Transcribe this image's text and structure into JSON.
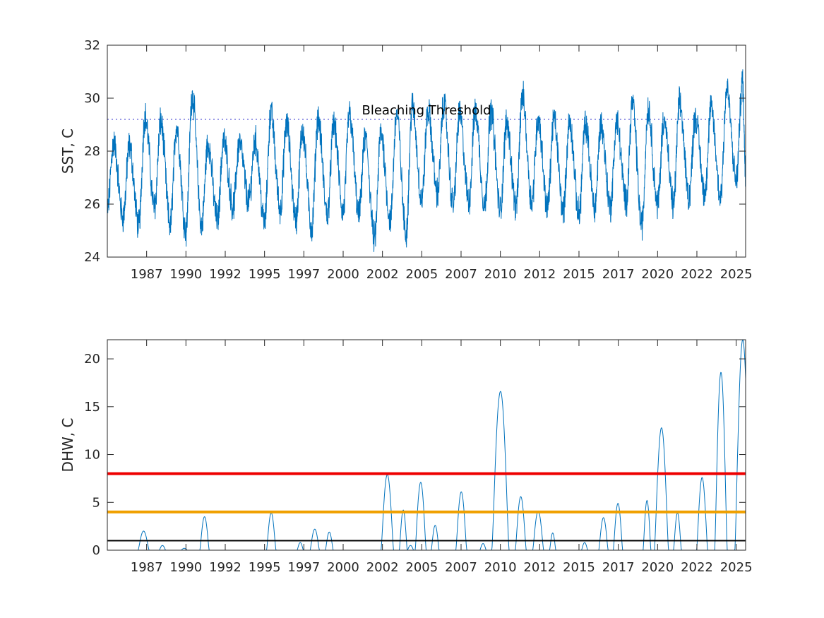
{
  "chart_data": [
    {
      "type": "line",
      "ylabel": "SST, C",
      "xlabel": "",
      "title": "",
      "xlim": [
        1984.5,
        2025.1
      ],
      "ylim": [
        24,
        32
      ],
      "y_ticks": [
        24,
        26,
        28,
        30,
        32
      ],
      "x_ticks": [
        1987,
        1990,
        1992,
        1995,
        1997,
        2000,
        2002,
        2005,
        2007,
        2010,
        2012,
        2015,
        2017,
        2020,
        2022,
        2025
      ],
      "x_tick_positions": [
        1987,
        1989.5,
        1992,
        1994.5,
        1997,
        1999.5,
        2002,
        2004.5,
        2007,
        2009.5,
        2012,
        2014.5,
        2017,
        2019.5,
        2022,
        2024.5
      ],
      "grid": false,
      "annotation": "Bleaching Threshold",
      "threshold": {
        "value": 29.2,
        "style": "dotted",
        "color": "#5a5ad6"
      },
      "series_color": "#0072BD",
      "series": [
        {
          "x": [
            1984.5,
            1984.9,
            1985.5,
            1985.9,
            1986.5,
            1986.9,
            1987.5,
            1987.9,
            1988.5,
            1988.9,
            1989.5,
            1989.9,
            1990.5,
            1990.9,
            1991.5,
            1991.9,
            1992.5,
            1992.9,
            1993.5,
            1993.9,
            1994.5,
            1994.9,
            1995.5,
            1995.9,
            1996.5,
            1996.9,
            1997.5,
            1997.9,
            1998.5,
            1998.9,
            1999.5,
            1999.9,
            2000.5,
            2000.9,
            2001.5,
            2001.9,
            2002.5,
            2002.9,
            2003.5,
            2003.9,
            2004.5,
            2004.9,
            2005.5,
            2005.9,
            2006.5,
            2006.9,
            2007.5,
            2007.9,
            2008.5,
            2008.9,
            2009.5,
            2009.9,
            2010.5,
            2010.9,
            2011.5,
            2011.9,
            2012.5,
            2012.9,
            2013.5,
            2013.9,
            2014.5,
            2014.9,
            2015.5,
            2015.9,
            2016.5,
            2016.9,
            2017.5,
            2017.9,
            2018.5,
            2018.9,
            2019.5,
            2019.9,
            2020.5,
            2020.9,
            2021.5,
            2021.9,
            2022.5,
            2022.9,
            2023.5,
            2023.9,
            2024.5,
            2024.9,
            2025.1
          ],
          "y": [
            25.8,
            28.3,
            25.5,
            28.2,
            25.2,
            29.3,
            25.9,
            29.1,
            25.2,
            28.9,
            25.0,
            30.1,
            25.2,
            28.3,
            25.4,
            28.4,
            25.9,
            28.3,
            26.1,
            28.4,
            25.3,
            29.4,
            25.8,
            29.0,
            25.4,
            28.8,
            25.1,
            29.2,
            25.6,
            29.0,
            25.7,
            29.4,
            25.6,
            28.5,
            24.7,
            28.7,
            25.4,
            29.4,
            24.9,
            29.7,
            26.2,
            29.5,
            26.4,
            29.8,
            26.0,
            29.4,
            26.1,
            29.5,
            26.0,
            29.5,
            25.8,
            29.1,
            25.9,
            30.1,
            26.1,
            29.2,
            25.9,
            29.2,
            25.8,
            29.1,
            25.6,
            29.0,
            25.9,
            29.0,
            25.9,
            29.1,
            26.1,
            29.8,
            25.2,
            29.6,
            26.0,
            29.2,
            26.0,
            29.8,
            26.3,
            29.3,
            26.4,
            29.6,
            26.3,
            30.3,
            26.9,
            30.6,
            27.2
          ]
        }
      ]
    },
    {
      "type": "line",
      "ylabel": "DHW, C",
      "xlabel": "",
      "title": "",
      "xlim": [
        1984.5,
        2025.1
      ],
      "ylim": [
        0,
        22
      ],
      "y_ticks": [
        0,
        5,
        10,
        15,
        20
      ],
      "x_ticks": [
        1987,
        1990,
        1992,
        1995,
        1997,
        2000,
        2002,
        2005,
        2007,
        2010,
        2012,
        2015,
        2017,
        2020,
        2022,
        2025
      ],
      "x_tick_positions": [
        1987,
        1989.5,
        1992,
        1994.5,
        1997,
        1999.5,
        2002,
        2004.5,
        2007,
        2009.5,
        2012,
        2014.5,
        2017,
        2019.5,
        2022,
        2024.5
      ],
      "grid": false,
      "reference_lines": [
        {
          "value": 8,
          "color": "#ee0000"
        },
        {
          "value": 4,
          "color": "#f0a000"
        },
        {
          "value": 1,
          "color": "#000000"
        }
      ],
      "series_color": "#0072BD",
      "events": [
        {
          "x": 1987.0,
          "peak": 2.0,
          "width": 0.35
        },
        {
          "x": 1988.3,
          "peak": 0.5,
          "width": 0.2
        },
        {
          "x": 1989.8,
          "peak": 0.2,
          "width": 0.2
        },
        {
          "x": 1991.2,
          "peak": 3.5,
          "width": 0.3
        },
        {
          "x": 1995.8,
          "peak": 3.9,
          "width": 0.3
        },
        {
          "x": 1997.8,
          "peak": 0.8,
          "width": 0.2
        },
        {
          "x": 1998.8,
          "peak": 2.2,
          "width": 0.3
        },
        {
          "x": 1999.8,
          "peak": 1.9,
          "width": 0.25
        },
        {
          "x": 2003.8,
          "peak": 7.9,
          "width": 0.4
        },
        {
          "x": 2004.9,
          "peak": 4.2,
          "width": 0.25
        },
        {
          "x": 2005.4,
          "peak": 0.5,
          "width": 0.2
        },
        {
          "x": 2006.1,
          "peak": 7.1,
          "width": 0.35
        },
        {
          "x": 2007.1,
          "peak": 2.6,
          "width": 0.25
        },
        {
          "x": 2008.9,
          "peak": 6.1,
          "width": 0.35
        },
        {
          "x": 2010.4,
          "peak": 0.7,
          "width": 0.2
        },
        {
          "x": 2011.6,
          "peak": 16.6,
          "width": 0.55
        },
        {
          "x": 2013.0,
          "peak": 5.6,
          "width": 0.35
        },
        {
          "x": 2014.2,
          "peak": 4.1,
          "width": 0.35
        },
        {
          "x": 2015.2,
          "peak": 1.8,
          "width": 0.2
        },
        {
          "x": 2017.4,
          "peak": 0.8,
          "width": 0.2
        },
        {
          "x": 2018.7,
          "peak": 3.4,
          "width": 0.3
        },
        {
          "x": 2019.7,
          "peak": 4.9,
          "width": 0.3
        },
        {
          "x": 2021.7,
          "peak": 5.2,
          "width": 0.25
        },
        {
          "x": 2022.7,
          "peak": 12.8,
          "width": 0.45
        },
        {
          "x": 2023.8,
          "peak": 3.9,
          "width": 0.25
        },
        {
          "x": 2025.5,
          "peak": 7.6,
          "width": 0.35
        },
        {
          "x": 2026.8,
          "peak": 18.6,
          "width": 0.4
        },
        {
          "x": 2028.3,
          "peak": 22.0,
          "width": 0.5
        }
      ]
    }
  ]
}
